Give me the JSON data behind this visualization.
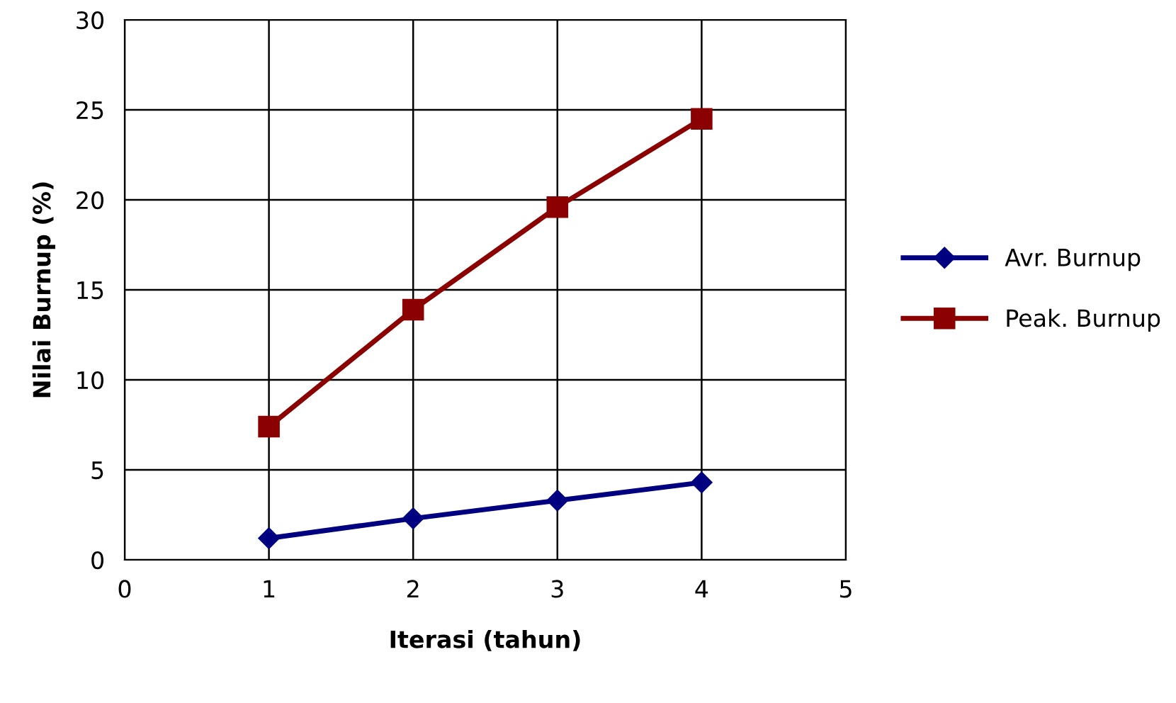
{
  "chart_data": {
    "type": "line",
    "xlabel": "Iterasi (tahun)",
    "ylabel": "Nilai Burnup (%)",
    "x": [
      1,
      2,
      3,
      4
    ],
    "series": [
      {
        "name": "Avr. Burnup",
        "color": "#000080",
        "values": [
          1.2,
          2.3,
          3.3,
          4.3
        ],
        "marker": "diamond"
      },
      {
        "name": "Peak. Burnup",
        "color": "#8b0000",
        "values": [
          7.4,
          13.9,
          19.6,
          24.5
        ],
        "marker": "square"
      }
    ],
    "xlim": [
      0,
      5
    ],
    "xticks": [
      0,
      1,
      2,
      3,
      4,
      5
    ],
    "ylim": [
      0,
      30
    ],
    "yticks": [
      0,
      5,
      10,
      15,
      20,
      25,
      30
    ],
    "grid": true,
    "legend": "right",
    "line_style": "solid"
  }
}
